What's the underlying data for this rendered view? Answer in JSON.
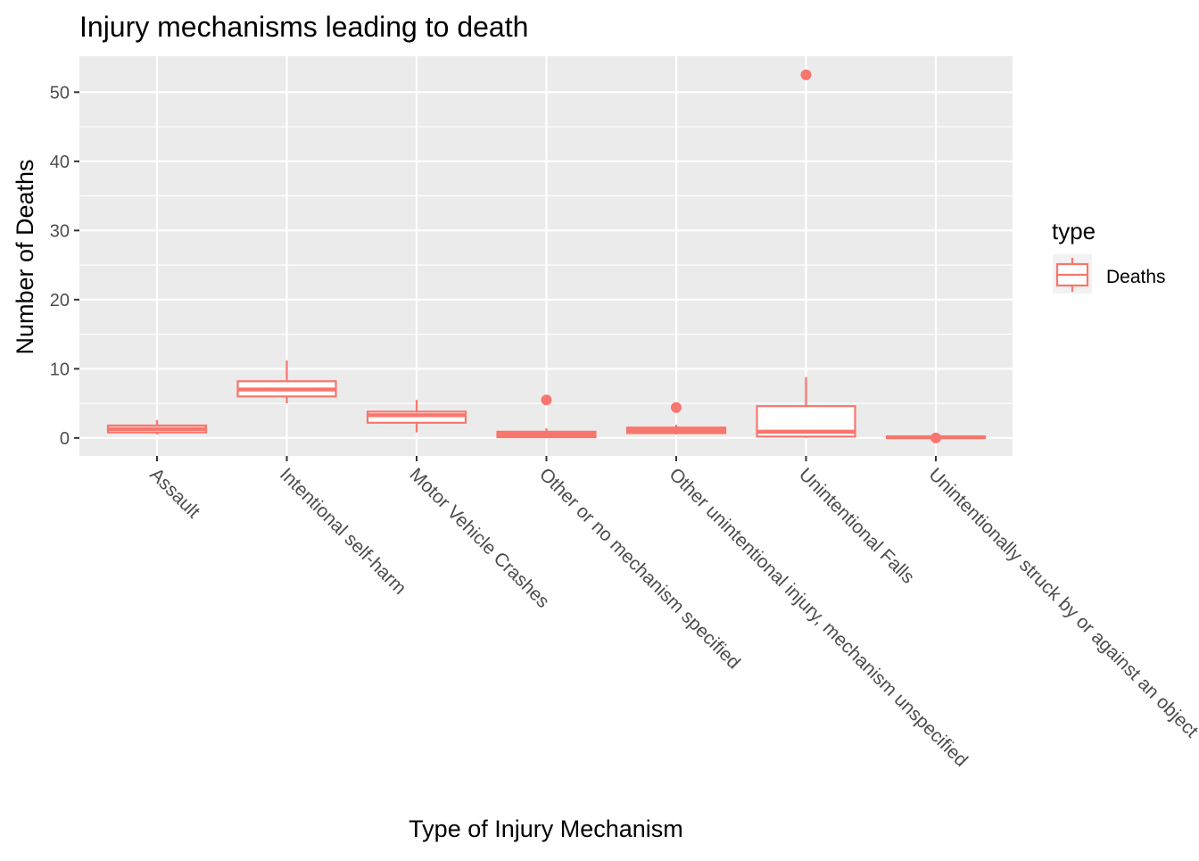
{
  "chart_data": {
    "type": "box",
    "title": "Injury mechanisms leading to death",
    "xlabel": "Type of Injury Mechanism",
    "ylabel": "Number of Deaths",
    "ylim": [
      -2.6,
      55.2
    ],
    "yticks": [
      0,
      10,
      20,
      30,
      40,
      50
    ],
    "grid": true,
    "legend": {
      "title": "type",
      "position": "right",
      "entries": [
        "Deaths"
      ]
    },
    "colors": {
      "series": "#F8766D",
      "panel": "#EBEBEB",
      "grid": "#FFFFFF",
      "box_fill": "#FFFFFF",
      "text": "#4D4D4D"
    },
    "categories": [
      "Assault",
      "Intentional self-harm",
      "Motor Vehicle Crashes",
      "Other or no mechanism specified",
      "Other unintentional injury, mechanism unspecified",
      "Unintentional Falls",
      "Unintentionally struck by or against an object"
    ],
    "series": [
      {
        "name": "Deaths",
        "boxes": [
          {
            "whisker_low": 0.5,
            "q1": 0.8,
            "median": 1.3,
            "q3": 1.8,
            "whisker_high": 2.6,
            "outliers": []
          },
          {
            "whisker_low": 5.0,
            "q1": 6.0,
            "median": 7.0,
            "q3": 8.2,
            "whisker_high": 11.2,
            "outliers": []
          },
          {
            "whisker_low": 0.8,
            "q1": 2.2,
            "median": 3.3,
            "q3": 3.8,
            "whisker_high": 5.5,
            "outliers": []
          },
          {
            "whisker_low": 0.0,
            "q1": 0.1,
            "median": 0.5,
            "q3": 0.9,
            "whisker_high": 1.4,
            "outliers": [
              5.5
            ]
          },
          {
            "whisker_low": 0.5,
            "q1": 0.7,
            "median": 1.1,
            "q3": 1.5,
            "whisker_high": 1.9,
            "outliers": [
              4.4
            ]
          },
          {
            "whisker_low": 0.0,
            "q1": 0.2,
            "median": 0.9,
            "q3": 4.6,
            "whisker_high": 8.8,
            "outliers": [
              52.5
            ]
          },
          {
            "whisker_low": 0.0,
            "q1": 0.0,
            "median": 0.1,
            "q3": 0.2,
            "whisker_high": 0.3,
            "outliers": [
              0.0
            ]
          }
        ]
      }
    ]
  }
}
